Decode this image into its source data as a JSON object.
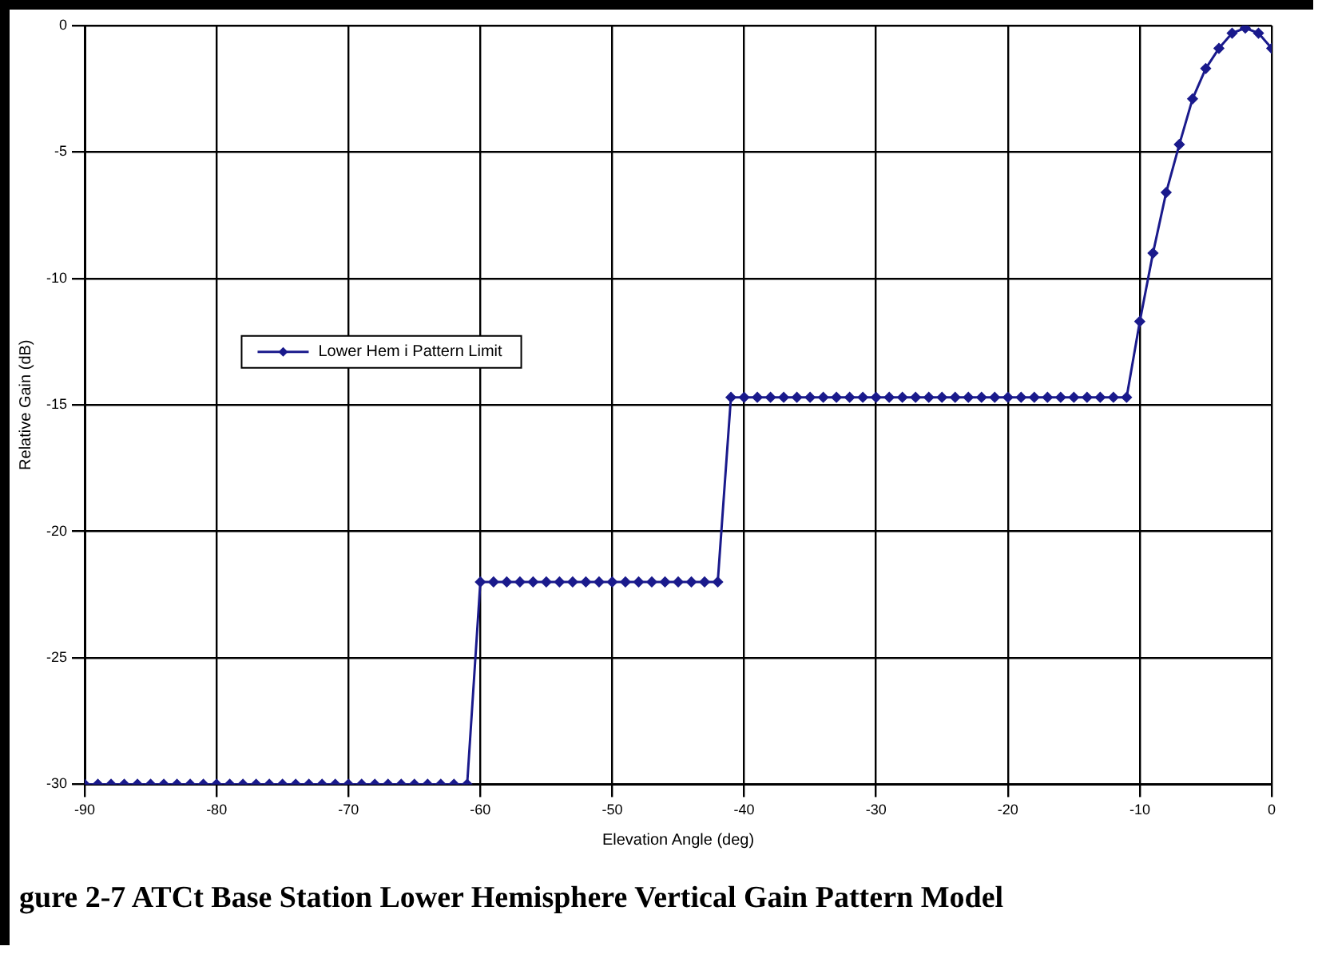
{
  "chart_data": {
    "type": "line",
    "title": "gure 2-7 ATCt Base Station Lower Hemisphere Vertical Gain Pattern Model",
    "xlabel": "Elevation Angle (deg)",
    "ylabel": "Relative Gain (dB)",
    "x": [
      -90,
      -89,
      -88,
      -87,
      -86,
      -85,
      -84,
      -83,
      -82,
      -81,
      -80,
      -79,
      -78,
      -77,
      -76,
      -75,
      -74,
      -73,
      -72,
      -71,
      -70,
      -69,
      -68,
      -67,
      -66,
      -65,
      -64,
      -63,
      -62,
      -61,
      -60,
      -59,
      -58,
      -57,
      -56,
      -55,
      -54,
      -53,
      -52,
      -51,
      -50,
      -49,
      -48,
      -47,
      -46,
      -45,
      -44,
      -43,
      -42,
      -41,
      -40,
      -39,
      -38,
      -37,
      -36,
      -35,
      -34,
      -33,
      -32,
      -31,
      -30,
      -29,
      -28,
      -27,
      -26,
      -25,
      -24,
      -23,
      -22,
      -21,
      -20,
      -19,
      -18,
      -17,
      -16,
      -15,
      -14,
      -13,
      -12,
      -11,
      -10,
      -9,
      -8,
      -7,
      -6,
      -5,
      -4,
      -3,
      -2,
      -1,
      0
    ],
    "series": [
      {
        "name": "Lower Hem i Pattern Limit",
        "color": "#1a1a8c",
        "values": [
          -30,
          -30,
          -30,
          -30,
          -30,
          -30,
          -30,
          -30,
          -30,
          -30,
          -30,
          -30,
          -30,
          -30,
          -30,
          -30,
          -30,
          -30,
          -30,
          -30,
          -30,
          -30,
          -30,
          -30,
          -30,
          -30,
          -30,
          -30,
          -30,
          -30,
          -22,
          -22,
          -22,
          -22,
          -22,
          -22,
          -22,
          -22,
          -22,
          -22,
          -22,
          -22,
          -22,
          -22,
          -22,
          -22,
          -22,
          -22,
          -22,
          -14.7,
          -14.7,
          -14.7,
          -14.7,
          -14.7,
          -14.7,
          -14.7,
          -14.7,
          -14.7,
          -14.7,
          -14.7,
          -14.7,
          -14.7,
          -14.7,
          -14.7,
          -14.7,
          -14.7,
          -14.7,
          -14.7,
          -14.7,
          -14.7,
          -14.7,
          -14.7,
          -14.7,
          -14.7,
          -14.7,
          -14.7,
          -14.7,
          -14.7,
          -14.7,
          -14.7,
          -11.7,
          -9,
          -6.6,
          -4.7,
          -2.9,
          -1.7,
          -0.9,
          -0.3,
          -0.1,
          -0.3,
          -0.9
        ]
      }
    ],
    "xlim": [
      -90,
      0
    ],
    "xticks": [
      -90,
      -80,
      -70,
      -60,
      -50,
      -40,
      -30,
      -20,
      -10,
      0
    ],
    "ylim": [
      -30,
      0
    ],
    "yticks": [
      -30,
      -25,
      -20,
      -15,
      -10,
      -5,
      0
    ],
    "grid": true,
    "legend": "center left",
    "marker": "diamond",
    "line_style": "solid"
  }
}
